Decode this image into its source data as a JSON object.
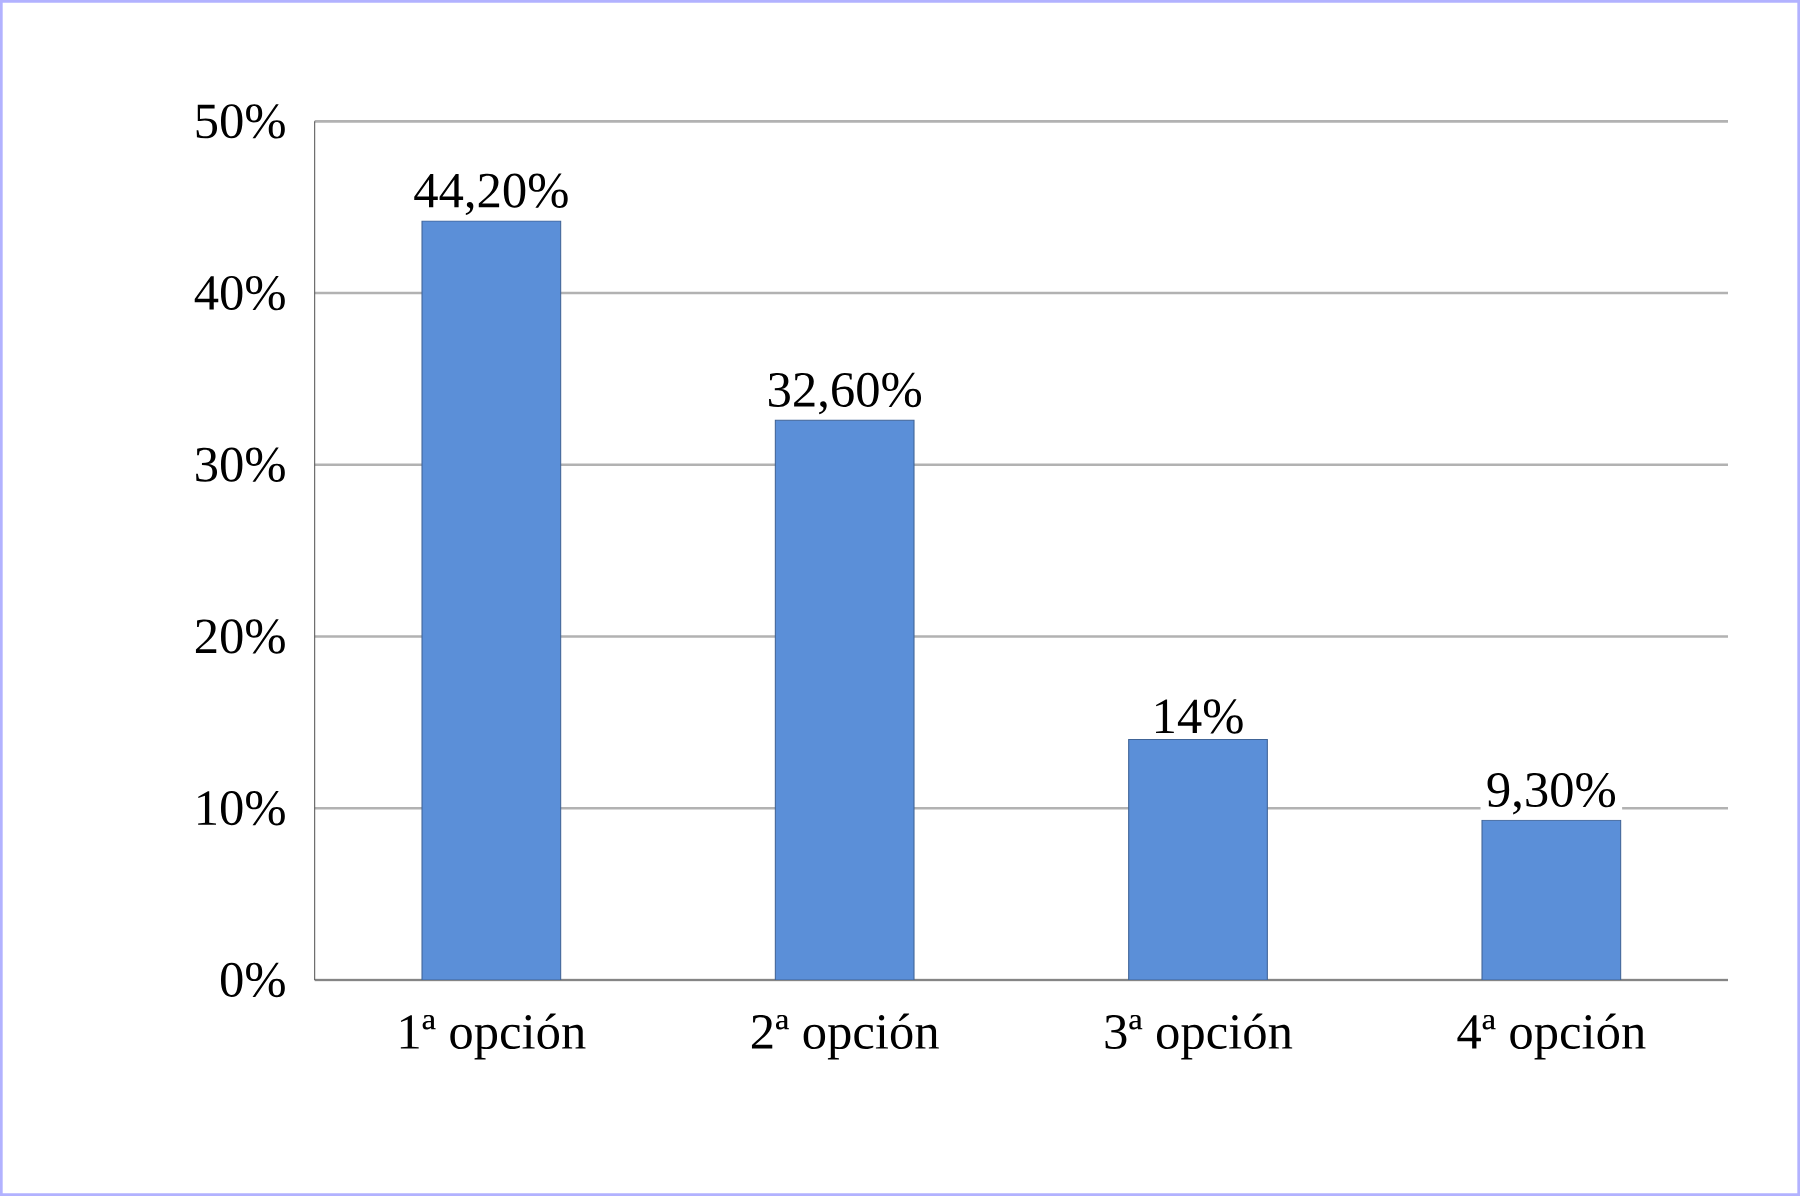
{
  "chart_data": {
    "type": "bar",
    "categories": [
      "1ª opción",
      "2ª opción",
      "3ª opción",
      "4ª opción"
    ],
    "values": [
      44.2,
      32.6,
      14,
      9.3
    ],
    "value_labels": [
      "44,20%",
      "32,60%",
      "14%",
      "9,30%"
    ],
    "color": "#5b8fd8",
    "ylim": [
      0,
      50
    ],
    "yticks": [
      {
        "value": 0,
        "label": "0%"
      },
      {
        "value": 10,
        "label": "10%"
      },
      {
        "value": 20,
        "label": "20%"
      },
      {
        "value": 30,
        "label": "30%"
      },
      {
        "value": 40,
        "label": "40%"
      },
      {
        "value": 50,
        "label": "50%"
      }
    ],
    "grid": "y"
  }
}
